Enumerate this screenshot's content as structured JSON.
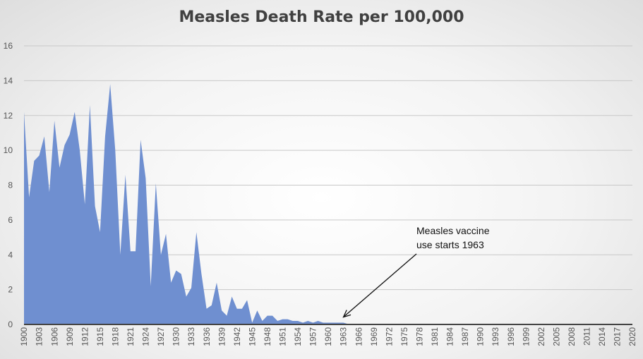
{
  "chart_data": {
    "type": "area",
    "title": "Measles Death Rate per 100,000",
    "xlabel": "",
    "ylabel": "",
    "ylim": [
      0,
      16
    ],
    "xlim": [
      1900,
      2020
    ],
    "y_ticks": [
      0,
      2,
      4,
      6,
      8,
      10,
      12,
      14,
      16
    ],
    "x_ticks": [
      1900,
      1903,
      1906,
      1909,
      1912,
      1915,
      1918,
      1921,
      1924,
      1927,
      1930,
      1933,
      1936,
      1939,
      1942,
      1945,
      1948,
      1951,
      1954,
      1957,
      1960,
      1963,
      1966,
      1969,
      1972,
      1975,
      1978,
      1981,
      1984,
      1987,
      1990,
      1993,
      1996,
      1999,
      2002,
      2005,
      2008,
      2011,
      2014,
      2017,
      2020
    ],
    "grid": true,
    "legend": "none",
    "colors": {
      "fill": "#6f8fd0",
      "grid": "#c8c8c8",
      "axis": "#444444"
    },
    "series": [
      {
        "x": [
          1900,
          1901,
          1902,
          1903,
          1904,
          1905,
          1906,
          1907,
          1908,
          1909,
          1910,
          1911,
          1912,
          1913,
          1914,
          1915,
          1916,
          1917,
          1918,
          1919,
          1920,
          1921,
          1922,
          1923,
          1924,
          1925,
          1926,
          1927,
          1928,
          1929,
          1930,
          1931,
          1932,
          1933,
          1934,
          1935,
          1936,
          1937,
          1938,
          1939,
          1940,
          1941,
          1942,
          1943,
          1944,
          1945,
          1946,
          1947,
          1948,
          1949,
          1950,
          1951,
          1952,
          1953,
          1954,
          1955,
          1956,
          1957,
          1958,
          1959,
          1960,
          1961,
          1962,
          1963,
          1964,
          1965,
          1966,
          1967,
          1968,
          1969,
          1970,
          1971,
          1972,
          1973,
          1974,
          1975,
          1976,
          1977,
          1978,
          1979,
          1980,
          1981,
          1982,
          1983,
          1984,
          1985,
          1986,
          1987,
          1988,
          1989,
          1990,
          1991,
          1992,
          1993,
          1994,
          1995,
          1996,
          1997,
          1998,
          1999,
          2000,
          2001,
          2002,
          2003,
          2004,
          2005,
          2006,
          2007,
          2008,
          2009,
          2010,
          2011,
          2012,
          2013,
          2014,
          2015,
          2016,
          2017,
          2018,
          2019,
          2020
        ],
        "values": [
          12.2,
          7.3,
          9.4,
          9.7,
          10.8,
          7.6,
          11.7,
          9.0,
          10.3,
          10.9,
          12.2,
          10.0,
          6.9,
          12.6,
          6.8,
          5.3,
          10.8,
          13.8,
          10.0,
          4.0,
          8.6,
          4.2,
          4.2,
          10.6,
          8.4,
          2.2,
          8.1,
          4.0,
          5.2,
          2.4,
          3.1,
          2.9,
          1.6,
          2.1,
          5.3,
          2.9,
          0.9,
          1.1,
          2.4,
          0.8,
          0.5,
          1.6,
          0.9,
          0.9,
          1.4,
          0.1,
          0.8,
          0.2,
          0.5,
          0.5,
          0.2,
          0.3,
          0.3,
          0.2,
          0.2,
          0.1,
          0.2,
          0.1,
          0.2,
          0.1,
          0.1,
          0.1,
          0.1,
          0.1,
          0.02,
          0.02,
          0.01,
          0.01,
          0,
          0,
          0,
          0,
          0,
          0,
          0,
          0,
          0,
          0,
          0,
          0,
          0,
          0,
          0,
          0,
          0,
          0,
          0,
          0,
          0,
          0,
          0,
          0,
          0,
          0,
          0,
          0,
          0,
          0,
          0,
          0,
          0,
          0,
          0,
          0,
          0,
          0,
          0,
          0,
          0,
          0,
          0,
          0,
          0,
          0,
          0,
          0,
          0,
          0,
          0,
          0,
          0
        ]
      }
    ],
    "annotations": [
      {
        "lines": [
          "Measles vaccine",
          "use starts 1963"
        ],
        "arrow_to": {
          "x": 1963,
          "y": 0.1
        }
      }
    ]
  }
}
